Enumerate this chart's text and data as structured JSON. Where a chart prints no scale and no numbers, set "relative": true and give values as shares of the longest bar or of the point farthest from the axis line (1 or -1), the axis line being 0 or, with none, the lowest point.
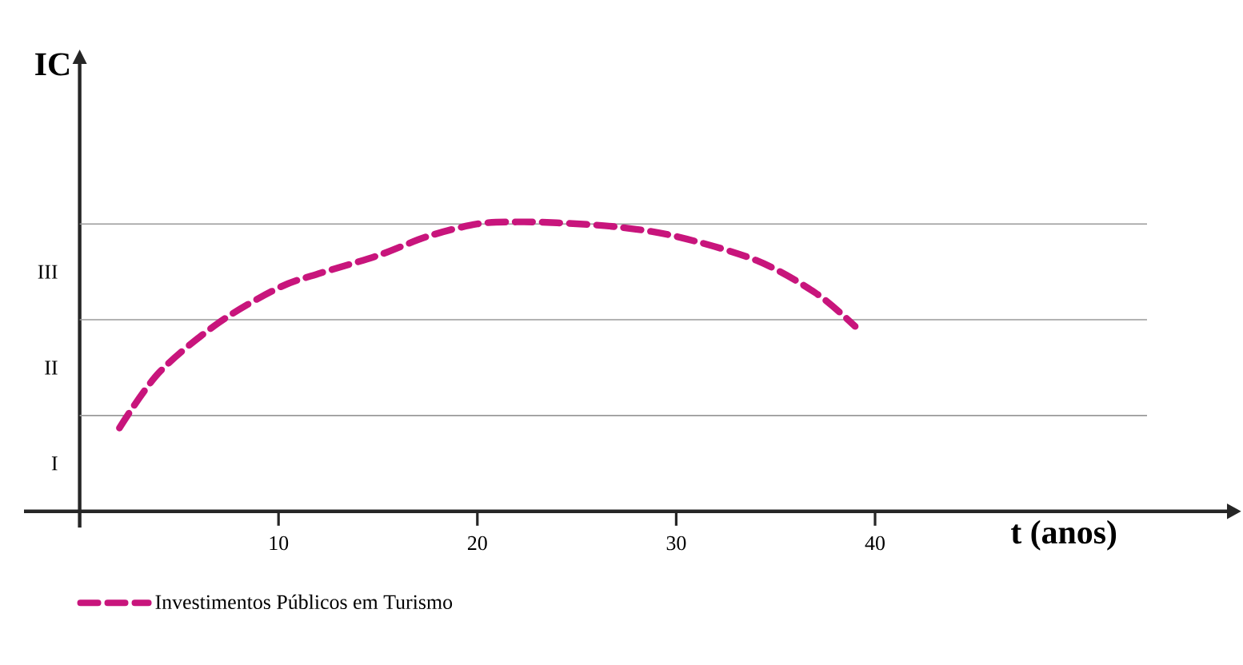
{
  "chart_data": {
    "type": "line",
    "xlabel": "t (anos)",
    "ylabel": "IC",
    "relative": true,
    "x": [
      2,
      4,
      7,
      10,
      12,
      15,
      17.5,
      20,
      22,
      24,
      27,
      30,
      34,
      37,
      39
    ],
    "series": [
      {
        "name": "Investimentos Públicos em Turismo",
        "color": "#c8157c",
        "values": [
          0.288,
          0.48,
          0.652,
          0.772,
          0.821,
          0.884,
          0.95,
          0.993,
          1,
          0.997,
          0.983,
          0.95,
          0.868,
          0.755,
          0.639
        ]
      }
    ],
    "xlim": [
      -2.8,
      57.7
    ],
    "xticks": [
      10,
      20,
      30,
      40
    ],
    "ref_lines": [
      {
        "axis": "y",
        "value": 0.331,
        "color": "#9a9a9a"
      },
      {
        "axis": "y",
        "value": 0.662,
        "color": "#9a9a9a"
      },
      {
        "axis": "y",
        "value": 0.993,
        "color": "#9a9a9a"
      }
    ],
    "annotations": [
      "I",
      "II",
      "III"
    ],
    "legend": "bottom left",
    "line_style": "dashed",
    "marker": "none"
  }
}
